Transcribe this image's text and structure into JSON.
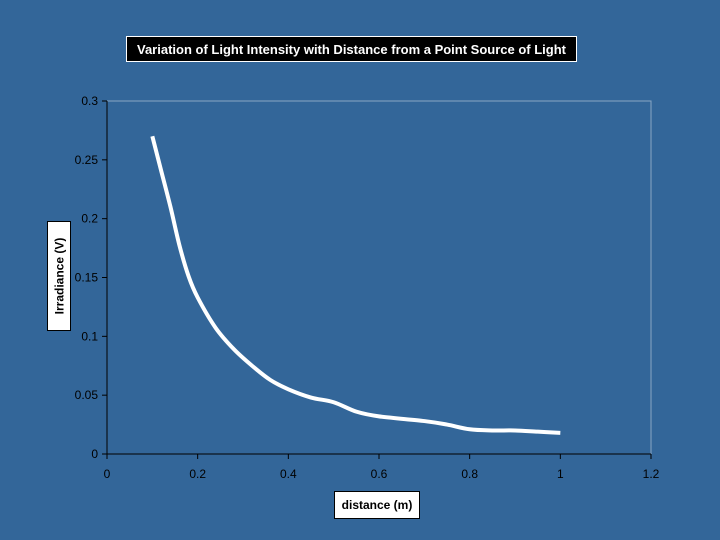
{
  "chart_data": {
    "type": "line",
    "title": "Variation of Light Intensity with Distance from a Point Source of Light",
    "xlabel": "distance (m)",
    "ylabel": "Irradiance (V)",
    "xlim": [
      0,
      1.2
    ],
    "ylim": [
      0,
      0.3
    ],
    "x_ticks": [
      "0",
      "0.2",
      "0.4",
      "0.6",
      "0.8",
      "1",
      "1.2"
    ],
    "y_ticks": [
      "0",
      "0.05",
      "0.1",
      "0.15",
      "0.2",
      "0.25",
      "0.3"
    ],
    "grid": false,
    "legend": "none",
    "series": [
      {
        "x": [
          0.1,
          0.12,
          0.14,
          0.16,
          0.18,
          0.2,
          0.24,
          0.28,
          0.32,
          0.36,
          0.4,
          0.45,
          0.5,
          0.55,
          0.6,
          0.7,
          0.75,
          0.8,
          0.85,
          0.9,
          0.95,
          1.0
        ],
        "y": [
          0.27,
          0.24,
          0.21,
          0.177,
          0.151,
          0.133,
          0.107,
          0.089,
          0.075,
          0.063,
          0.055,
          0.048,
          0.044,
          0.036,
          0.032,
          0.028,
          0.025,
          0.021,
          0.02,
          0.02,
          0.019,
          0.018
        ],
        "color": "#ffffff"
      }
    ]
  },
  "colors": {
    "background": "#336699",
    "line": "#ffffff",
    "axis": "#000000"
  }
}
